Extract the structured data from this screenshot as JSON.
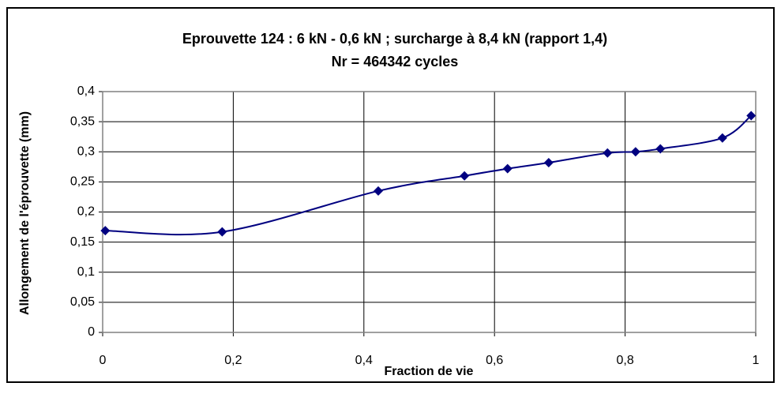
{
  "chart_data": {
    "type": "line",
    "title": [
      "Eprouvette 124 : 6 kN - 0,6 kN ; surcharge à 8,4 kN (rapport 1,4)",
      "Nr = 464342 cycles"
    ],
    "x_label": "Fraction de vie",
    "y_label": "Allongement de l'éprouvette (mm)",
    "xlim": [
      0,
      1
    ],
    "ylim": [
      0,
      0.4
    ],
    "xticks": [
      0,
      {
        "value": 0.2,
        "label": "0,2"
      },
      {
        "value": 0.4,
        "label": "0,4"
      },
      {
        "value": 0.6,
        "label": "0,6"
      },
      {
        "value": 0.8,
        "label": "0,8"
      },
      1
    ],
    "yticks": [
      0,
      {
        "value": 0.05,
        "label": "0,05"
      },
      {
        "value": 0.1,
        "label": "0,1"
      },
      {
        "value": 0.15,
        "label": "0,15"
      },
      {
        "value": 0.2,
        "label": "0,2"
      },
      {
        "value": 0.25,
        "label": "0,25"
      },
      {
        "value": 0.3,
        "label": "0,3"
      },
      {
        "value": 0.35,
        "label": "0,35"
      },
      {
        "value": 0.4,
        "label": "0,4"
      }
    ],
    "grid": true,
    "smooth": true,
    "series": [
      {
        "color": "#000080",
        "x": [
          0.004,
          0.183,
          0.422,
          0.554,
          0.62,
          0.683,
          0.773,
          0.816,
          0.854,
          0.949,
          0.993
        ],
        "values": [
          0.169,
          0.167,
          0.235,
          0.26,
          0.272,
          0.282,
          0.298,
          0.3,
          0.305,
          0.323,
          0.36
        ]
      }
    ]
  }
}
